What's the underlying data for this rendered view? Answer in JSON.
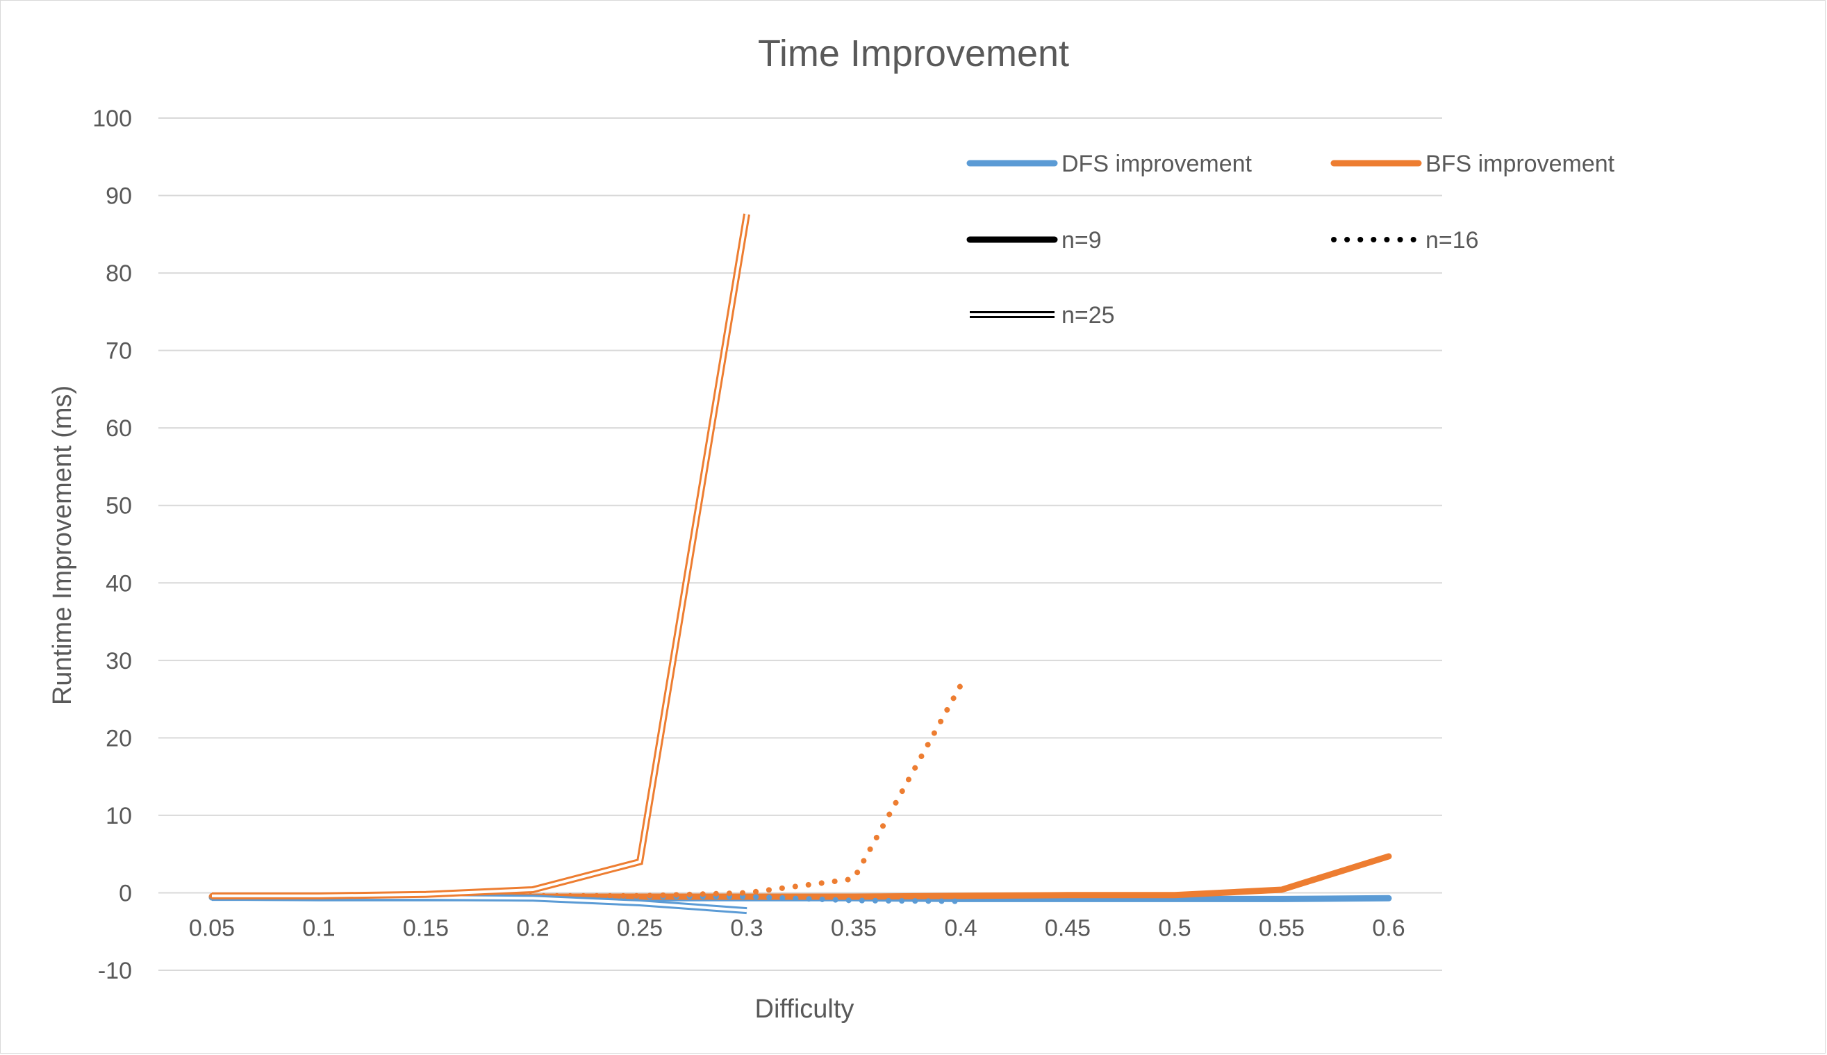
{
  "chart_data": {
    "type": "line",
    "title": "Time Improvement",
    "xlabel": "Difficulty",
    "ylabel": "Runtime Improvement (ms)",
    "ylim": [
      -10,
      100
    ],
    "yticks": [
      "100",
      "90",
      "80",
      "70",
      "60",
      "50",
      "40",
      "30",
      "20",
      "10",
      "0",
      "-10"
    ],
    "categories": [
      "0.05",
      "0.1",
      "0.15",
      "0.2",
      "0.25",
      "0.3",
      "0.35",
      "0.4",
      "0.45",
      "0.5",
      "0.55",
      "0.6"
    ],
    "grid": true,
    "legend_position": "top-right",
    "legend": [
      {
        "label": "DFS improvement",
        "kind": "color",
        "color": "#5B9BD5"
      },
      {
        "label": "BFS improvement",
        "kind": "color",
        "color": "#ED7D31"
      },
      {
        "label": "n=9",
        "kind": "style",
        "style": "solid"
      },
      {
        "label": "n=16",
        "kind": "style",
        "style": "dotted"
      },
      {
        "label": "n=25",
        "kind": "style",
        "style": "double"
      }
    ],
    "series": [
      {
        "algorithm": "DFS",
        "n": "9",
        "color": "#5B9BD5",
        "style": "solid",
        "values": [
          -0.6,
          -0.7,
          -0.7,
          -0.7,
          -0.7,
          -0.7,
          -0.7,
          -0.8,
          -0.8,
          -0.8,
          -0.8,
          -0.7
        ]
      },
      {
        "algorithm": "BFS",
        "n": "9",
        "color": "#ED7D31",
        "style": "solid",
        "values": [
          -0.5,
          -0.5,
          -0.5,
          -0.5,
          -0.5,
          -0.5,
          -0.5,
          -0.4,
          -0.3,
          -0.3,
          0.4,
          4.7
        ]
      },
      {
        "algorithm": "DFS",
        "n": "16",
        "color": "#5B9BD5",
        "style": "dotted",
        "values": [
          -0.5,
          -0.5,
          -0.5,
          -0.5,
          -0.5,
          -0.5,
          -1.0,
          -1.1,
          null,
          null,
          null,
          null
        ]
      },
      {
        "algorithm": "BFS",
        "n": "16",
        "color": "#ED7D31",
        "style": "dotted",
        "values": [
          -0.4,
          -0.4,
          -0.4,
          -0.4,
          -0.4,
          0.0,
          1.8,
          26.8,
          null,
          null,
          null,
          null
        ]
      },
      {
        "algorithm": "DFS",
        "n": "25",
        "color": "#5B9BD5",
        "style": "double",
        "values": [
          -0.6,
          -0.6,
          -0.6,
          -0.7,
          -1.3,
          -2.3,
          null,
          null,
          null,
          null,
          null,
          null
        ]
      },
      {
        "algorithm": "BFS",
        "n": "25",
        "color": "#ED7D31",
        "style": "double",
        "values": [
          -0.4,
          -0.4,
          -0.2,
          0.4,
          4.0,
          87.6,
          null,
          null,
          null,
          null,
          null,
          null
        ]
      }
    ]
  }
}
